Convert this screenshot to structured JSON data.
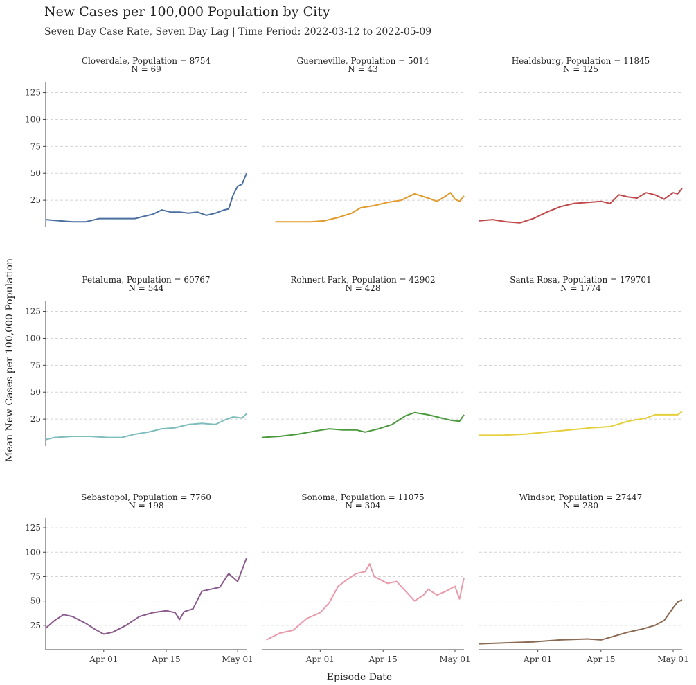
{
  "header": {
    "title": "New Cases per 100,000 Population by City",
    "subtitle": "Seven Day Case Rate, Seven Day Lag | Time Period: 2022-03-12 to 2022-05-09"
  },
  "chart_data": {
    "type": "line",
    "xlabel": "Episode Date",
    "ylabel": "Mean New Cases per 100,000 Population",
    "ylim": [
      0,
      135
    ],
    "xlim": [
      "2022-03-19",
      "2022-05-01"
    ],
    "y_ticks": [
      "25",
      "50",
      "75",
      "100",
      "125"
    ],
    "y_tick_values": [
      25,
      50,
      75,
      100,
      125
    ],
    "x_tick_labels": [
      "Apr 01",
      "Apr 15",
      "May 01"
    ],
    "x_tick_dates": [
      "2022-04-01",
      "2022-04-15",
      "2022-05-01"
    ],
    "grid": "horizontal dashed",
    "facets": [
      {
        "title": "Cloverdale, Population = 8754",
        "n_label": "N = 69",
        "color": "#4a6fa0",
        "points": [
          [
            "2022-03-19",
            7
          ],
          [
            "2022-03-22",
            6
          ],
          [
            "2022-03-25",
            5
          ],
          [
            "2022-03-28",
            5
          ],
          [
            "2022-03-31",
            8
          ],
          [
            "2022-04-03",
            8
          ],
          [
            "2022-04-06",
            8
          ],
          [
            "2022-04-08",
            8
          ],
          [
            "2022-04-10",
            10
          ],
          [
            "2022-04-12",
            12
          ],
          [
            "2022-04-14",
            16
          ],
          [
            "2022-04-16",
            14
          ],
          [
            "2022-04-18",
            14
          ],
          [
            "2022-04-20",
            13
          ],
          [
            "2022-04-22",
            14
          ],
          [
            "2022-04-24",
            11
          ],
          [
            "2022-04-26",
            13
          ],
          [
            "2022-04-28",
            16
          ],
          [
            "2022-04-29",
            17
          ],
          [
            "2022-04-30",
            30
          ],
          [
            "2022-05-01",
            38
          ],
          [
            "2022-05-02",
            40
          ],
          [
            "2022-05-03",
            50
          ]
        ]
      },
      {
        "title": "Guerneville, Population = 5014",
        "n_label": "N = 43",
        "color": "#e19a2c",
        "points": [
          [
            "2022-03-22",
            5
          ],
          [
            "2022-03-26",
            5
          ],
          [
            "2022-03-30",
            5
          ],
          [
            "2022-04-02",
            6
          ],
          [
            "2022-04-05",
            9
          ],
          [
            "2022-04-08",
            13
          ],
          [
            "2022-04-10",
            18
          ],
          [
            "2022-04-13",
            20
          ],
          [
            "2022-04-16",
            23
          ],
          [
            "2022-04-19",
            25
          ],
          [
            "2022-04-22",
            31
          ],
          [
            "2022-04-25",
            27
          ],
          [
            "2022-04-27",
            24
          ],
          [
            "2022-04-29",
            29
          ],
          [
            "2022-04-30",
            32
          ],
          [
            "2022-05-01",
            26
          ],
          [
            "2022-05-02",
            24
          ],
          [
            "2022-05-03",
            29
          ]
        ]
      },
      {
        "title": "Healdsburg, Population = 11845",
        "n_label": "N = 125",
        "color": "#c0474a",
        "points": [
          [
            "2022-03-19",
            6
          ],
          [
            "2022-03-22",
            7
          ],
          [
            "2022-03-25",
            5
          ],
          [
            "2022-03-28",
            4
          ],
          [
            "2022-03-31",
            8
          ],
          [
            "2022-04-03",
            14
          ],
          [
            "2022-04-06",
            19
          ],
          [
            "2022-04-09",
            22
          ],
          [
            "2022-04-12",
            23
          ],
          [
            "2022-04-15",
            24
          ],
          [
            "2022-04-17",
            22
          ],
          [
            "2022-04-19",
            30
          ],
          [
            "2022-04-21",
            28
          ],
          [
            "2022-04-23",
            27
          ],
          [
            "2022-04-25",
            32
          ],
          [
            "2022-04-27",
            30
          ],
          [
            "2022-04-29",
            26
          ],
          [
            "2022-05-01",
            32
          ],
          [
            "2022-05-02",
            31
          ],
          [
            "2022-05-03",
            36
          ]
        ]
      },
      {
        "title": "Petaluma, Population = 60767",
        "n_label": "N = 544",
        "color": "#7fbcbc",
        "points": [
          [
            "2022-03-19",
            6
          ],
          [
            "2022-03-21",
            8
          ],
          [
            "2022-03-25",
            9
          ],
          [
            "2022-03-29",
            9
          ],
          [
            "2022-04-02",
            8
          ],
          [
            "2022-04-05",
            8
          ],
          [
            "2022-04-08",
            11
          ],
          [
            "2022-04-11",
            13
          ],
          [
            "2022-04-14",
            16
          ],
          [
            "2022-04-17",
            17
          ],
          [
            "2022-04-20",
            20
          ],
          [
            "2022-04-23",
            21
          ],
          [
            "2022-04-26",
            20
          ],
          [
            "2022-04-28",
            24
          ],
          [
            "2022-04-30",
            27
          ],
          [
            "2022-05-02",
            26
          ],
          [
            "2022-05-03",
            30
          ]
        ]
      },
      {
        "title": "Rohnert Park, Population = 42902",
        "n_label": "N = 428",
        "color": "#4c9a3e",
        "points": [
          [
            "2022-03-19",
            8
          ],
          [
            "2022-03-23",
            9
          ],
          [
            "2022-03-27",
            11
          ],
          [
            "2022-03-31",
            14
          ],
          [
            "2022-04-03",
            16
          ],
          [
            "2022-04-06",
            15
          ],
          [
            "2022-04-09",
            15
          ],
          [
            "2022-04-11",
            13
          ],
          [
            "2022-04-14",
            16
          ],
          [
            "2022-04-17",
            20
          ],
          [
            "2022-04-20",
            28
          ],
          [
            "2022-04-22",
            31
          ],
          [
            "2022-04-25",
            29
          ],
          [
            "2022-04-28",
            26
          ],
          [
            "2022-04-30",
            24
          ],
          [
            "2022-05-02",
            23
          ],
          [
            "2022-05-03",
            29
          ]
        ]
      },
      {
        "title": "Santa Rosa, Population = 179701",
        "n_label": "N = 1774",
        "color": "#e6cf3c",
        "points": [
          [
            "2022-03-19",
            10
          ],
          [
            "2022-03-24",
            10
          ],
          [
            "2022-03-29",
            11
          ],
          [
            "2022-04-03",
            13
          ],
          [
            "2022-04-08",
            15
          ],
          [
            "2022-04-13",
            17
          ],
          [
            "2022-04-17",
            18
          ],
          [
            "2022-04-21",
            23
          ],
          [
            "2022-04-25",
            26
          ],
          [
            "2022-04-27",
            29
          ],
          [
            "2022-04-30",
            29
          ],
          [
            "2022-05-02",
            29
          ],
          [
            "2022-05-03",
            32
          ]
        ]
      },
      {
        "title": "Sebastopol, Population = 7760",
        "n_label": "N = 198",
        "color": "#8a5a8c",
        "points": [
          [
            "2022-03-19",
            22
          ],
          [
            "2022-03-21",
            30
          ],
          [
            "2022-03-23",
            36
          ],
          [
            "2022-03-25",
            34
          ],
          [
            "2022-03-28",
            27
          ],
          [
            "2022-03-30",
            21
          ],
          [
            "2022-04-01",
            16
          ],
          [
            "2022-04-03",
            18
          ],
          [
            "2022-04-06",
            25
          ],
          [
            "2022-04-09",
            34
          ],
          [
            "2022-04-12",
            38
          ],
          [
            "2022-04-15",
            40
          ],
          [
            "2022-04-17",
            38
          ],
          [
            "2022-04-18",
            31
          ],
          [
            "2022-04-19",
            39
          ],
          [
            "2022-04-21",
            42
          ],
          [
            "2022-04-23",
            60
          ],
          [
            "2022-04-25",
            62
          ],
          [
            "2022-04-27",
            64
          ],
          [
            "2022-04-29",
            78
          ],
          [
            "2022-05-01",
            70
          ],
          [
            "2022-05-02",
            82
          ],
          [
            "2022-05-03",
            94
          ]
        ]
      },
      {
        "title": "Sonoma, Population = 11075",
        "n_label": "N = 304",
        "color": "#e89aab",
        "points": [
          [
            "2022-03-20",
            10
          ],
          [
            "2022-03-23",
            17
          ],
          [
            "2022-03-26",
            20
          ],
          [
            "2022-03-29",
            32
          ],
          [
            "2022-04-01",
            38
          ],
          [
            "2022-04-03",
            48
          ],
          [
            "2022-04-05",
            65
          ],
          [
            "2022-04-07",
            72
          ],
          [
            "2022-04-09",
            78
          ],
          [
            "2022-04-11",
            80
          ],
          [
            "2022-04-12",
            88
          ],
          [
            "2022-04-13",
            75
          ],
          [
            "2022-04-16",
            68
          ],
          [
            "2022-04-18",
            70
          ],
          [
            "2022-04-20",
            60
          ],
          [
            "2022-04-22",
            50
          ],
          [
            "2022-04-24",
            56
          ],
          [
            "2022-04-25",
            62
          ],
          [
            "2022-04-27",
            56
          ],
          [
            "2022-04-29",
            60
          ],
          [
            "2022-05-01",
            65
          ],
          [
            "2022-05-02",
            52
          ],
          [
            "2022-05-03",
            74
          ]
        ]
      },
      {
        "title": "Windsor, Population = 27447",
        "n_label": "N = 280",
        "color": "#8a6a52",
        "points": [
          [
            "2022-03-19",
            6
          ],
          [
            "2022-03-25",
            7
          ],
          [
            "2022-03-31",
            8
          ],
          [
            "2022-04-06",
            10
          ],
          [
            "2022-04-12",
            11
          ],
          [
            "2022-04-15",
            10
          ],
          [
            "2022-04-18",
            14
          ],
          [
            "2022-04-21",
            18
          ],
          [
            "2022-04-24",
            21
          ],
          [
            "2022-04-27",
            25
          ],
          [
            "2022-04-29",
            30
          ],
          [
            "2022-05-01",
            43
          ],
          [
            "2022-05-02",
            49
          ],
          [
            "2022-05-03",
            51
          ]
        ]
      }
    ]
  }
}
